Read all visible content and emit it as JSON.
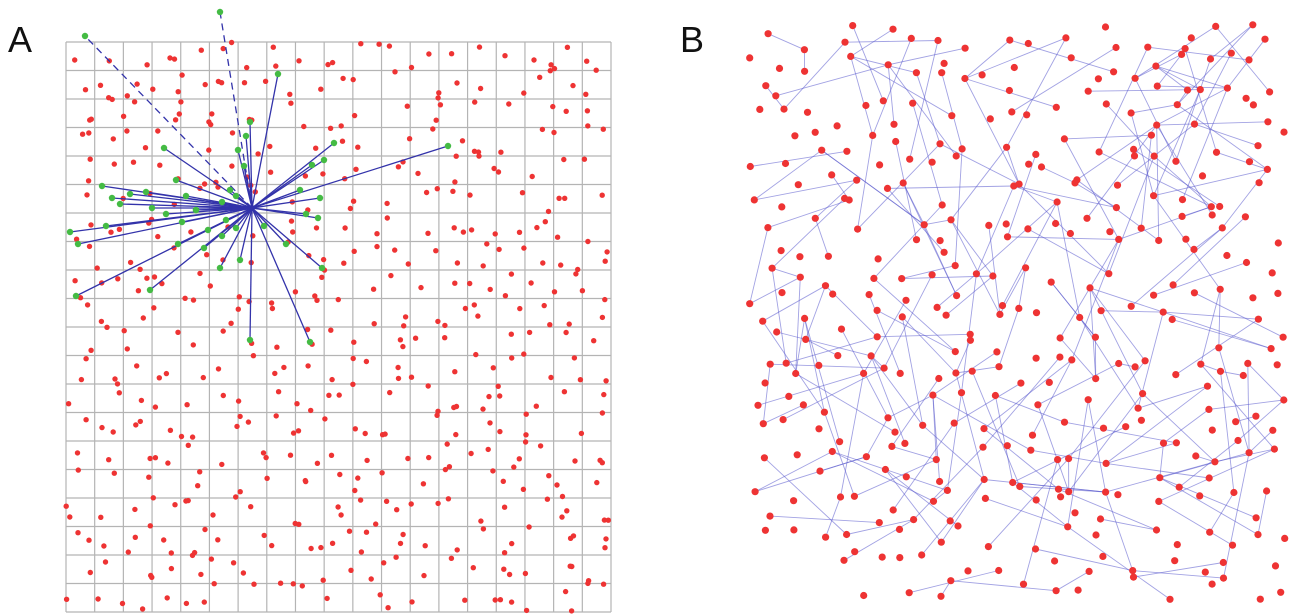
{
  "panels": [
    {
      "label": "A"
    },
    {
      "label": "B"
    }
  ],
  "colors": {
    "node": "#ee3333",
    "neighbor": "#44bb44",
    "edge": "#3333aa",
    "network_edge": "#5555cc",
    "grid": "#b4b4b4"
  },
  "icons": {
    "nodes": "red-dot",
    "neighbors": "green-dot",
    "hub": "hub-node"
  }
}
